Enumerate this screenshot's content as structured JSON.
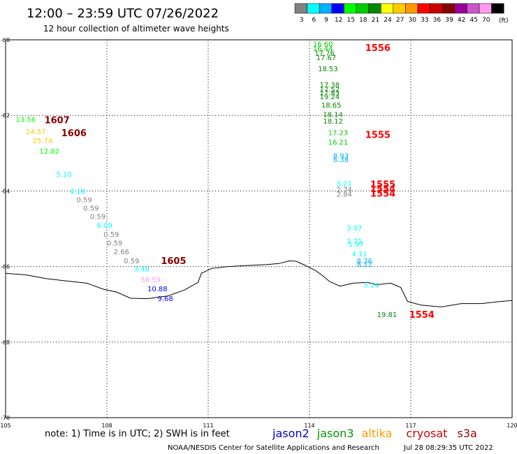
{
  "header": {
    "title": "12:00 – 23:59 UTC 07/26/2022",
    "subtitle": "12 hour collection of altimeter wave heights"
  },
  "legend": {
    "unit": "(ft)",
    "bins": [
      {
        "label": "3",
        "color": "#808080"
      },
      {
        "label": "6",
        "color": "#00ffff"
      },
      {
        "label": "9",
        "color": "#00b0ff"
      },
      {
        "label": "12",
        "color": "#0000ff"
      },
      {
        "label": "15",
        "color": "#00ff00"
      },
      {
        "label": "18",
        "color": "#00cc00"
      },
      {
        "label": "21",
        "color": "#008800"
      },
      {
        "label": "24",
        "color": "#ffff00"
      },
      {
        "label": "27",
        "color": "#ffcc00"
      },
      {
        "label": "30",
        "color": "#ff9900"
      },
      {
        "label": "33",
        "color": "#ff0000"
      },
      {
        "label": "36",
        "color": "#cc0000"
      },
      {
        "label": "39",
        "color": "#880000"
      },
      {
        "label": "42",
        "color": "#990099"
      },
      {
        "label": "45",
        "color": "#cc55cc"
      },
      {
        "label": "70",
        "color": "#ff99ee"
      },
      {
        "label": "",
        "color": "#000000"
      }
    ]
  },
  "footer": {
    "note": "note: 1) Time is in UTC; 2) SWH is in feet",
    "credit": "NOAA/NESDIS Center for Satellite Applications and Research",
    "timestamp": "Jul 28 08:29:35 UTC 2022",
    "satellites": [
      {
        "name": "jason2",
        "color": "#0000cc"
      },
      {
        "name": "jason3",
        "color": "#009900"
      },
      {
        "name": "altika",
        "color": "#ff9900"
      },
      {
        "name": "cryosat",
        "color": "#cc0000"
      },
      {
        "name": "s3a",
        "color": "#990000"
      }
    ]
  },
  "chart_data": {
    "type": "scatter",
    "xlim": [
      105,
      120
    ],
    "ylim": [
      -70,
      -60
    ],
    "xticks": [
      {
        "v": 105,
        "label": "105"
      },
      {
        "v": 108,
        "label": "108"
      },
      {
        "v": 111,
        "label": "111"
      },
      {
        "v": 114,
        "label": "114"
      },
      {
        "v": 117,
        "label": "117"
      },
      {
        "v": 120,
        "label": "120"
      }
    ],
    "yticks": [
      {
        "v": -60,
        "label": "-60"
      },
      {
        "v": -62,
        "label": "-62"
      },
      {
        "v": -64,
        "label": "-64"
      },
      {
        "v": -66,
        "label": "-66"
      },
      {
        "v": -68,
        "label": "-68"
      },
      {
        "v": -70,
        "label": "-70"
      }
    ],
    "grid": true,
    "coastline": [
      [
        105.0,
        -66.18
      ],
      [
        105.6,
        -66.22
      ],
      [
        106.2,
        -66.32
      ],
      [
        106.8,
        -66.38
      ],
      [
        107.4,
        -66.44
      ],
      [
        107.9,
        -66.6
      ],
      [
        108.3,
        -66.68
      ],
      [
        108.7,
        -66.84
      ],
      [
        109.2,
        -66.85
      ],
      [
        109.8,
        -66.78
      ],
      [
        110.3,
        -66.62
      ],
      [
        110.7,
        -66.42
      ],
      [
        110.8,
        -66.18
      ],
      [
        111.1,
        -66.05
      ],
      [
        111.6,
        -66.0
      ],
      [
        112.2,
        -65.97
      ],
      [
        112.7,
        -65.95
      ],
      [
        113.1,
        -65.92
      ],
      [
        113.4,
        -65.85
      ],
      [
        113.6,
        -65.86
      ],
      [
        113.9,
        -65.98
      ],
      [
        114.2,
        -66.12
      ],
      [
        114.4,
        -66.25
      ],
      [
        114.6,
        -66.4
      ],
      [
        114.9,
        -66.52
      ],
      [
        115.3,
        -66.44
      ],
      [
        115.7,
        -66.42
      ],
      [
        116.0,
        -66.48
      ],
      [
        116.4,
        -66.44
      ],
      [
        116.7,
        -66.55
      ],
      [
        116.9,
        -66.92
      ],
      [
        117.3,
        -67.02
      ],
      [
        117.9,
        -67.07
      ],
      [
        118.5,
        -66.98
      ],
      [
        119.1,
        -66.98
      ],
      [
        119.6,
        -66.93
      ],
      [
        120.0,
        -66.9
      ]
    ],
    "labels": [
      {
        "x": 114.1,
        "y": -60.1,
        "text": "16.60",
        "color": "#00cc00"
      },
      {
        "x": 114.1,
        "y": -60.22,
        "text": "16.44",
        "color": "#00cc00"
      },
      {
        "x": 114.15,
        "y": -60.34,
        "text": "17.76",
        "color": "#008800"
      },
      {
        "x": 114.2,
        "y": -60.46,
        "text": "17.67",
        "color": "#008800"
      },
      {
        "x": 114.25,
        "y": -60.76,
        "text": "18.53",
        "color": "#008800"
      },
      {
        "x": 114.3,
        "y": -61.18,
        "text": "17.38",
        "color": "#008800"
      },
      {
        "x": 114.3,
        "y": -61.3,
        "text": "17.52",
        "color": "#008800"
      },
      {
        "x": 114.3,
        "y": -61.4,
        "text": "17.83",
        "color": "#008800"
      },
      {
        "x": 114.3,
        "y": -61.5,
        "text": "19.24",
        "color": "#008800"
      },
      {
        "x": 114.35,
        "y": -61.72,
        "text": "18.65",
        "color": "#008800"
      },
      {
        "x": 114.4,
        "y": -61.97,
        "text": "18.14",
        "color": "#008800"
      },
      {
        "x": 114.4,
        "y": -62.14,
        "text": "18.12",
        "color": "#008800"
      },
      {
        "x": 114.55,
        "y": -62.45,
        "text": "17.23",
        "color": "#00cc00"
      },
      {
        "x": 114.55,
        "y": -62.7,
        "text": "16.21",
        "color": "#00cc00"
      },
      {
        "x": 114.7,
        "y": -63.06,
        "text": "8.93",
        "color": "#00b0ff"
      },
      {
        "x": 114.7,
        "y": -63.16,
        "text": "6.38",
        "color": "#00b0ff"
      },
      {
        "x": 114.8,
        "y": -63.8,
        "text": "5.21",
        "color": "#00ffff"
      },
      {
        "x": 114.8,
        "y": -63.96,
        "text": "2.74",
        "color": "#808080"
      },
      {
        "x": 114.8,
        "y": -64.08,
        "text": "2.84",
        "color": "#808080"
      },
      {
        "x": 115.1,
        "y": -64.97,
        "text": "3.97",
        "color": "#00ffff"
      },
      {
        "x": 115.1,
        "y": -65.32,
        "text": "1.71",
        "color": "#00ffff"
      },
      {
        "x": 115.15,
        "y": -65.4,
        "text": "1.97",
        "color": "#00ffff"
      },
      {
        "x": 115.25,
        "y": -65.66,
        "text": "4.11",
        "color": "#00ffff"
      },
      {
        "x": 115.4,
        "y": -65.84,
        "text": "8.36",
        "color": "#00b0ff"
      },
      {
        "x": 115.4,
        "y": -65.93,
        "text": "8.12",
        "color": "#00b0ff"
      },
      {
        "x": 115.6,
        "y": -66.48,
        "text": "5.14",
        "color": "#00ffff"
      },
      {
        "x": 116.0,
        "y": -67.26,
        "text": "19.81",
        "color": "#008800"
      },
      {
        "x": 105.3,
        "y": -62.1,
        "text": "13.56",
        "color": "#00ff00"
      },
      {
        "x": 105.6,
        "y": -62.42,
        "text": "24.57",
        "color": "#ffcc00"
      },
      {
        "x": 105.8,
        "y": -62.66,
        "text": "25.74",
        "color": "#ffcc00"
      },
      {
        "x": 106.0,
        "y": -62.94,
        "text": "12.82",
        "color": "#00ff00"
      },
      {
        "x": 106.5,
        "y": -63.55,
        "text": "5.10",
        "color": "#00ffff"
      },
      {
        "x": 106.9,
        "y": -64.0,
        "text": "4.18",
        "color": "#00ffff"
      },
      {
        "x": 107.1,
        "y": -64.22,
        "text": "0.59",
        "color": "#808080"
      },
      {
        "x": 107.3,
        "y": -64.45,
        "text": "0.59",
        "color": "#808080"
      },
      {
        "x": 107.5,
        "y": -64.67,
        "text": "0.59",
        "color": "#808080"
      },
      {
        "x": 107.7,
        "y": -64.9,
        "text": "6.09",
        "color": "#00ffff"
      },
      {
        "x": 107.9,
        "y": -65.14,
        "text": "0.59",
        "color": "#808080"
      },
      {
        "x": 108.0,
        "y": -65.37,
        "text": "0.59",
        "color": "#808080"
      },
      {
        "x": 108.2,
        "y": -65.6,
        "text": "2.66",
        "color": "#808080"
      },
      {
        "x": 108.5,
        "y": -65.84,
        "text": "0.59",
        "color": "#808080"
      },
      {
        "x": 108.8,
        "y": -66.05,
        "text": "3.48",
        "color": "#00ffff"
      },
      {
        "x": 109.0,
        "y": -66.34,
        "text": "58.59",
        "color": "#ff99ee"
      },
      {
        "x": 109.2,
        "y": -66.58,
        "text": "10.88",
        "color": "#0000ff"
      },
      {
        "x": 109.5,
        "y": -66.84,
        "text": "9.68",
        "color": "#0000ff"
      }
    ],
    "time_labels": [
      {
        "x": 115.65,
        "y": -60.2,
        "text": "1556",
        "color": "#ff0000"
      },
      {
        "x": 106.15,
        "y": -62.12,
        "text": "1607",
        "color": "#880000"
      },
      {
        "x": 106.65,
        "y": -62.46,
        "text": "1606",
        "color": "#880000"
      },
      {
        "x": 115.65,
        "y": -62.5,
        "text": "1555",
        "color": "#ff0000"
      },
      {
        "x": 115.8,
        "y": -63.82,
        "text": "1555",
        "color": "#ff0000"
      },
      {
        "x": 115.8,
        "y": -63.94,
        "text": "1554",
        "color": "#ff0000"
      },
      {
        "x": 115.8,
        "y": -64.06,
        "text": "1554",
        "color": "#ff0000"
      },
      {
        "x": 109.6,
        "y": -65.84,
        "text": "1605",
        "color": "#880000"
      },
      {
        "x": 116.95,
        "y": -67.26,
        "text": "1554",
        "color": "#ff0000"
      }
    ]
  }
}
